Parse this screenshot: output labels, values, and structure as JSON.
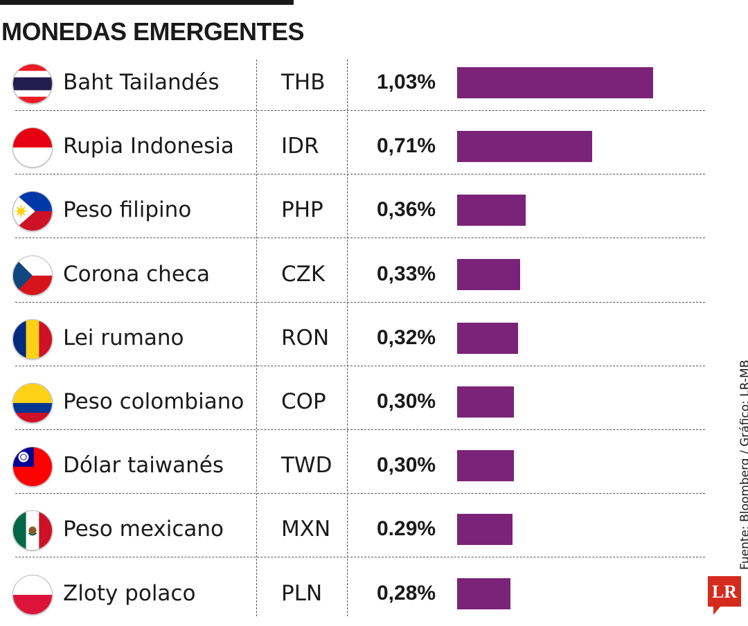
{
  "title": "MONEDAS EMERGENTES",
  "source": "Fuente: Bloomberg / Gráfico: LR-MB",
  "logo_text": "LR",
  "colors": {
    "bar": "#7a2378",
    "logo": "#d52b1e",
    "text": "#1a1a1a"
  },
  "chart_data": {
    "type": "bar",
    "orientation": "horizontal",
    "title": "MONEDAS EMERGENTES",
    "value_unit": "%",
    "xlim": [
      0,
      1.03
    ],
    "rows": [
      {
        "name": "Baht Tailandés",
        "code": "THB",
        "label": "1,03%",
        "value": 1.03,
        "flag": "thailand-flag-icon"
      },
      {
        "name": "Rupia Indonesia",
        "code": "IDR",
        "label": "0,71%",
        "value": 0.71,
        "flag": "indonesia-flag-icon"
      },
      {
        "name": "Peso filipino",
        "code": "PHP",
        "label": "0,36%",
        "value": 0.36,
        "flag": "philippines-flag-icon"
      },
      {
        "name": "Corona checa",
        "code": "CZK",
        "label": "0,33%",
        "value": 0.33,
        "flag": "czech-flag-icon"
      },
      {
        "name": "Lei rumano",
        "code": "RON",
        "label": "0,32%",
        "value": 0.32,
        "flag": "romania-flag-icon"
      },
      {
        "name": "Peso colombiano",
        "code": "COP",
        "label": "0,30%",
        "value": 0.3,
        "flag": "colombia-flag-icon"
      },
      {
        "name": "Dólar taiwanés",
        "code": "TWD",
        "label": "0,30%",
        "value": 0.3,
        "flag": "taiwan-flag-icon"
      },
      {
        "name": "Peso mexicano",
        "code": "MXN",
        "label": "0.29%",
        "value": 0.29,
        "flag": "mexico-flag-icon"
      },
      {
        "name": "Zloty polaco",
        "code": "PLN",
        "label": "0,28%",
        "value": 0.28,
        "flag": "poland-flag-icon"
      }
    ]
  }
}
